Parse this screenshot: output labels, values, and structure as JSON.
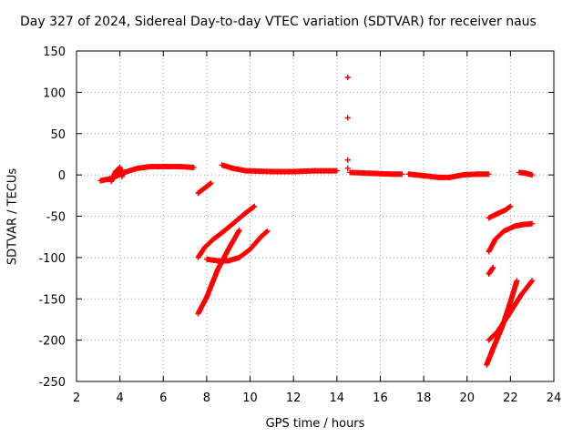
{
  "chart_data": {
    "type": "scatter",
    "title": "Day 327 of 2024, Sidereal Day-to-day VTEC variation (SDTVAR) for receiver naus",
    "xlabel": "GPS time / hours",
    "ylabel": "SDTVAR / TECUs",
    "xlim": [
      2,
      24
    ],
    "ylim": [
      -250,
      150
    ],
    "xticks": [
      2,
      4,
      6,
      8,
      10,
      12,
      14,
      16,
      18,
      20,
      22,
      24
    ],
    "yticks": [
      -250,
      -200,
      -150,
      -100,
      -50,
      0,
      50,
      100,
      150
    ],
    "grid": true,
    "marker": "+",
    "color": "#ff0000",
    "series": [
      {
        "name": "SDTVAR",
        "segments": [
          [
            [
              3.1,
              -7
            ],
            [
              3.5,
              -5
            ],
            [
              3.8,
              -2
            ],
            [
              4.2,
              3
            ],
            [
              4.8,
              8
            ],
            [
              5.4,
              10
            ],
            [
              6.0,
              10
            ],
            [
              6.8,
              10
            ],
            [
              7.4,
              9
            ]
          ],
          [
            [
              3.6,
              -8
            ],
            [
              3.8,
              4
            ],
            [
              4.0,
              9
            ],
            [
              4.1,
              -2
            ]
          ],
          [
            [
              7.6,
              -22
            ],
            [
              8.2,
              -10
            ]
          ],
          [
            [
              7.6,
              -100
            ],
            [
              7.9,
              -88
            ],
            [
              8.3,
              -78
            ],
            [
              8.8,
              -68
            ],
            [
              9.3,
              -57
            ],
            [
              9.8,
              -46
            ],
            [
              10.2,
              -38
            ]
          ],
          [
            [
              8.0,
              -102
            ],
            [
              8.5,
              -104
            ],
            [
              9.0,
              -104
            ],
            [
              9.5,
              -100
            ],
            [
              10.0,
              -90
            ],
            [
              10.5,
              -75
            ],
            [
              10.8,
              -68
            ]
          ],
          [
            [
              7.6,
              -168
            ],
            [
              8.0,
              -148
            ],
            [
              8.5,
              -115
            ],
            [
              9.0,
              -90
            ],
            [
              9.5,
              -67
            ]
          ],
          [
            [
              8.7,
              12
            ],
            [
              9.2,
              8
            ],
            [
              9.8,
              5
            ],
            [
              11.0,
              4
            ],
            [
              12.0,
              4
            ],
            [
              13.0,
              5
            ],
            [
              14.0,
              5
            ]
          ],
          [
            [
              14.5,
              118
            ],
            [
              14.5,
              118
            ]
          ],
          [
            [
              14.5,
              69
            ],
            [
              14.5,
              69
            ]
          ],
          [
            [
              14.5,
              18
            ],
            [
              14.5,
              18
            ]
          ],
          [
            [
              14.5,
              8
            ],
            [
              14.5,
              8
            ]
          ],
          [
            [
              14.6,
              3
            ],
            [
              15.5,
              2
            ],
            [
              16.5,
              1
            ],
            [
              17.0,
              1
            ]
          ],
          [
            [
              17.3,
              1
            ],
            [
              18.0,
              -1
            ],
            [
              18.7,
              -3
            ],
            [
              19.2,
              -3
            ],
            [
              19.8,
              0
            ],
            [
              20.5,
              1
            ],
            [
              21.0,
              1
            ]
          ],
          [
            [
              21.0,
              -52
            ],
            [
              21.4,
              -47
            ],
            [
              21.8,
              -42
            ],
            [
              22.0,
              -38
            ]
          ],
          [
            [
              21.0,
              -93
            ],
            [
              21.3,
              -78
            ],
            [
              21.7,
              -68
            ],
            [
              22.2,
              -62
            ],
            [
              22.6,
              -60
            ],
            [
              23.0,
              -59
            ]
          ],
          [
            [
              21.0,
              -120
            ],
            [
              21.2,
              -112
            ]
          ],
          [
            [
              20.9,
              -230
            ],
            [
              21.2,
              -210
            ],
            [
              21.6,
              -185
            ],
            [
              21.9,
              -162
            ],
            [
              22.3,
              -128
            ]
          ],
          [
            [
              21.0,
              -200
            ],
            [
              21.4,
              -190
            ],
            [
              21.9,
              -170
            ],
            [
              22.5,
              -145
            ],
            [
              23.0,
              -128
            ]
          ],
          [
            [
              22.4,
              3
            ],
            [
              22.7,
              2
            ],
            [
              23.0,
              0
            ]
          ]
        ]
      }
    ]
  }
}
